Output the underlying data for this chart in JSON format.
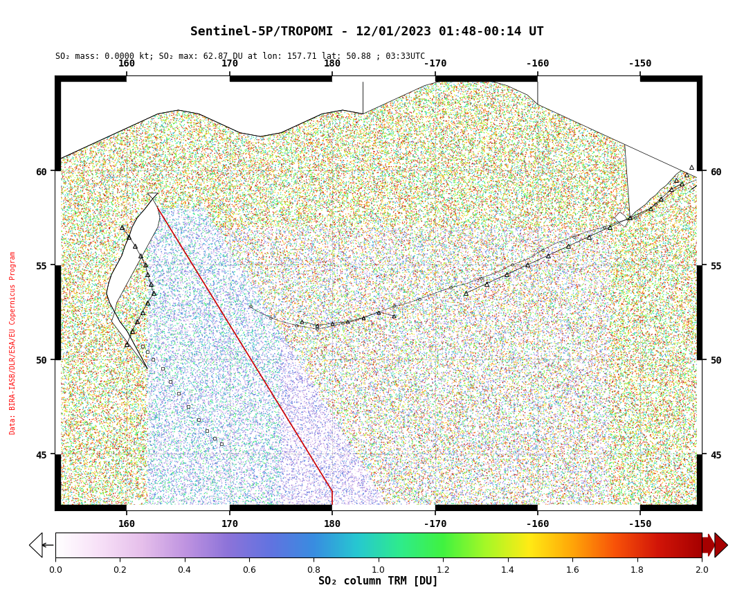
{
  "title": "Sentinel-5P/TROPOMI - 12/01/2023 01:48-00:14 UT",
  "subtitle": "SO₂ mass: 0.0000 kt; SO₂ max: 62.87 DU at lon: 157.71 lat: 50.88 ; 03:33UTC",
  "colorbar_label": "SO₂ column TRM [DU]",
  "colorbar_ticks": [
    0.0,
    0.2,
    0.4,
    0.6,
    0.8,
    1.0,
    1.2,
    1.4,
    1.6,
    1.8,
    2.0
  ],
  "x_ticks_data": [
    160,
    170,
    180,
    190,
    200,
    210
  ],
  "x_tick_labels": [
    "160",
    "170",
    "180",
    "-170",
    "-160",
    "-150"
  ],
  "y_ticks_data": [
    45,
    50,
    55,
    60
  ],
  "y_tick_labels": [
    "45",
    "50",
    "55",
    "60"
  ],
  "xlim": [
    153,
    216
  ],
  "ylim": [
    42,
    65
  ],
  "background_color": "#ffffff",
  "sidebar_text": "Data: BIRA-IASB/DLR/ESA/EU Copernicus Program",
  "title_fontsize": 13,
  "subtitle_fontsize": 8.5,
  "tick_fontsize": 10,
  "colorbar_tick_fontsize": 9,
  "colorbar_label_fontsize": 11,
  "vmin": 0.0,
  "vmax": 2.0,
  "noise_seed": 42,
  "swath_boundary_color": "#cc0000",
  "land_color": "#ffffff",
  "land_edge_color": "#000000",
  "grid_color": "#bbbbbb",
  "grid_linestyle": "--",
  "grid_linewidth": 0.6
}
